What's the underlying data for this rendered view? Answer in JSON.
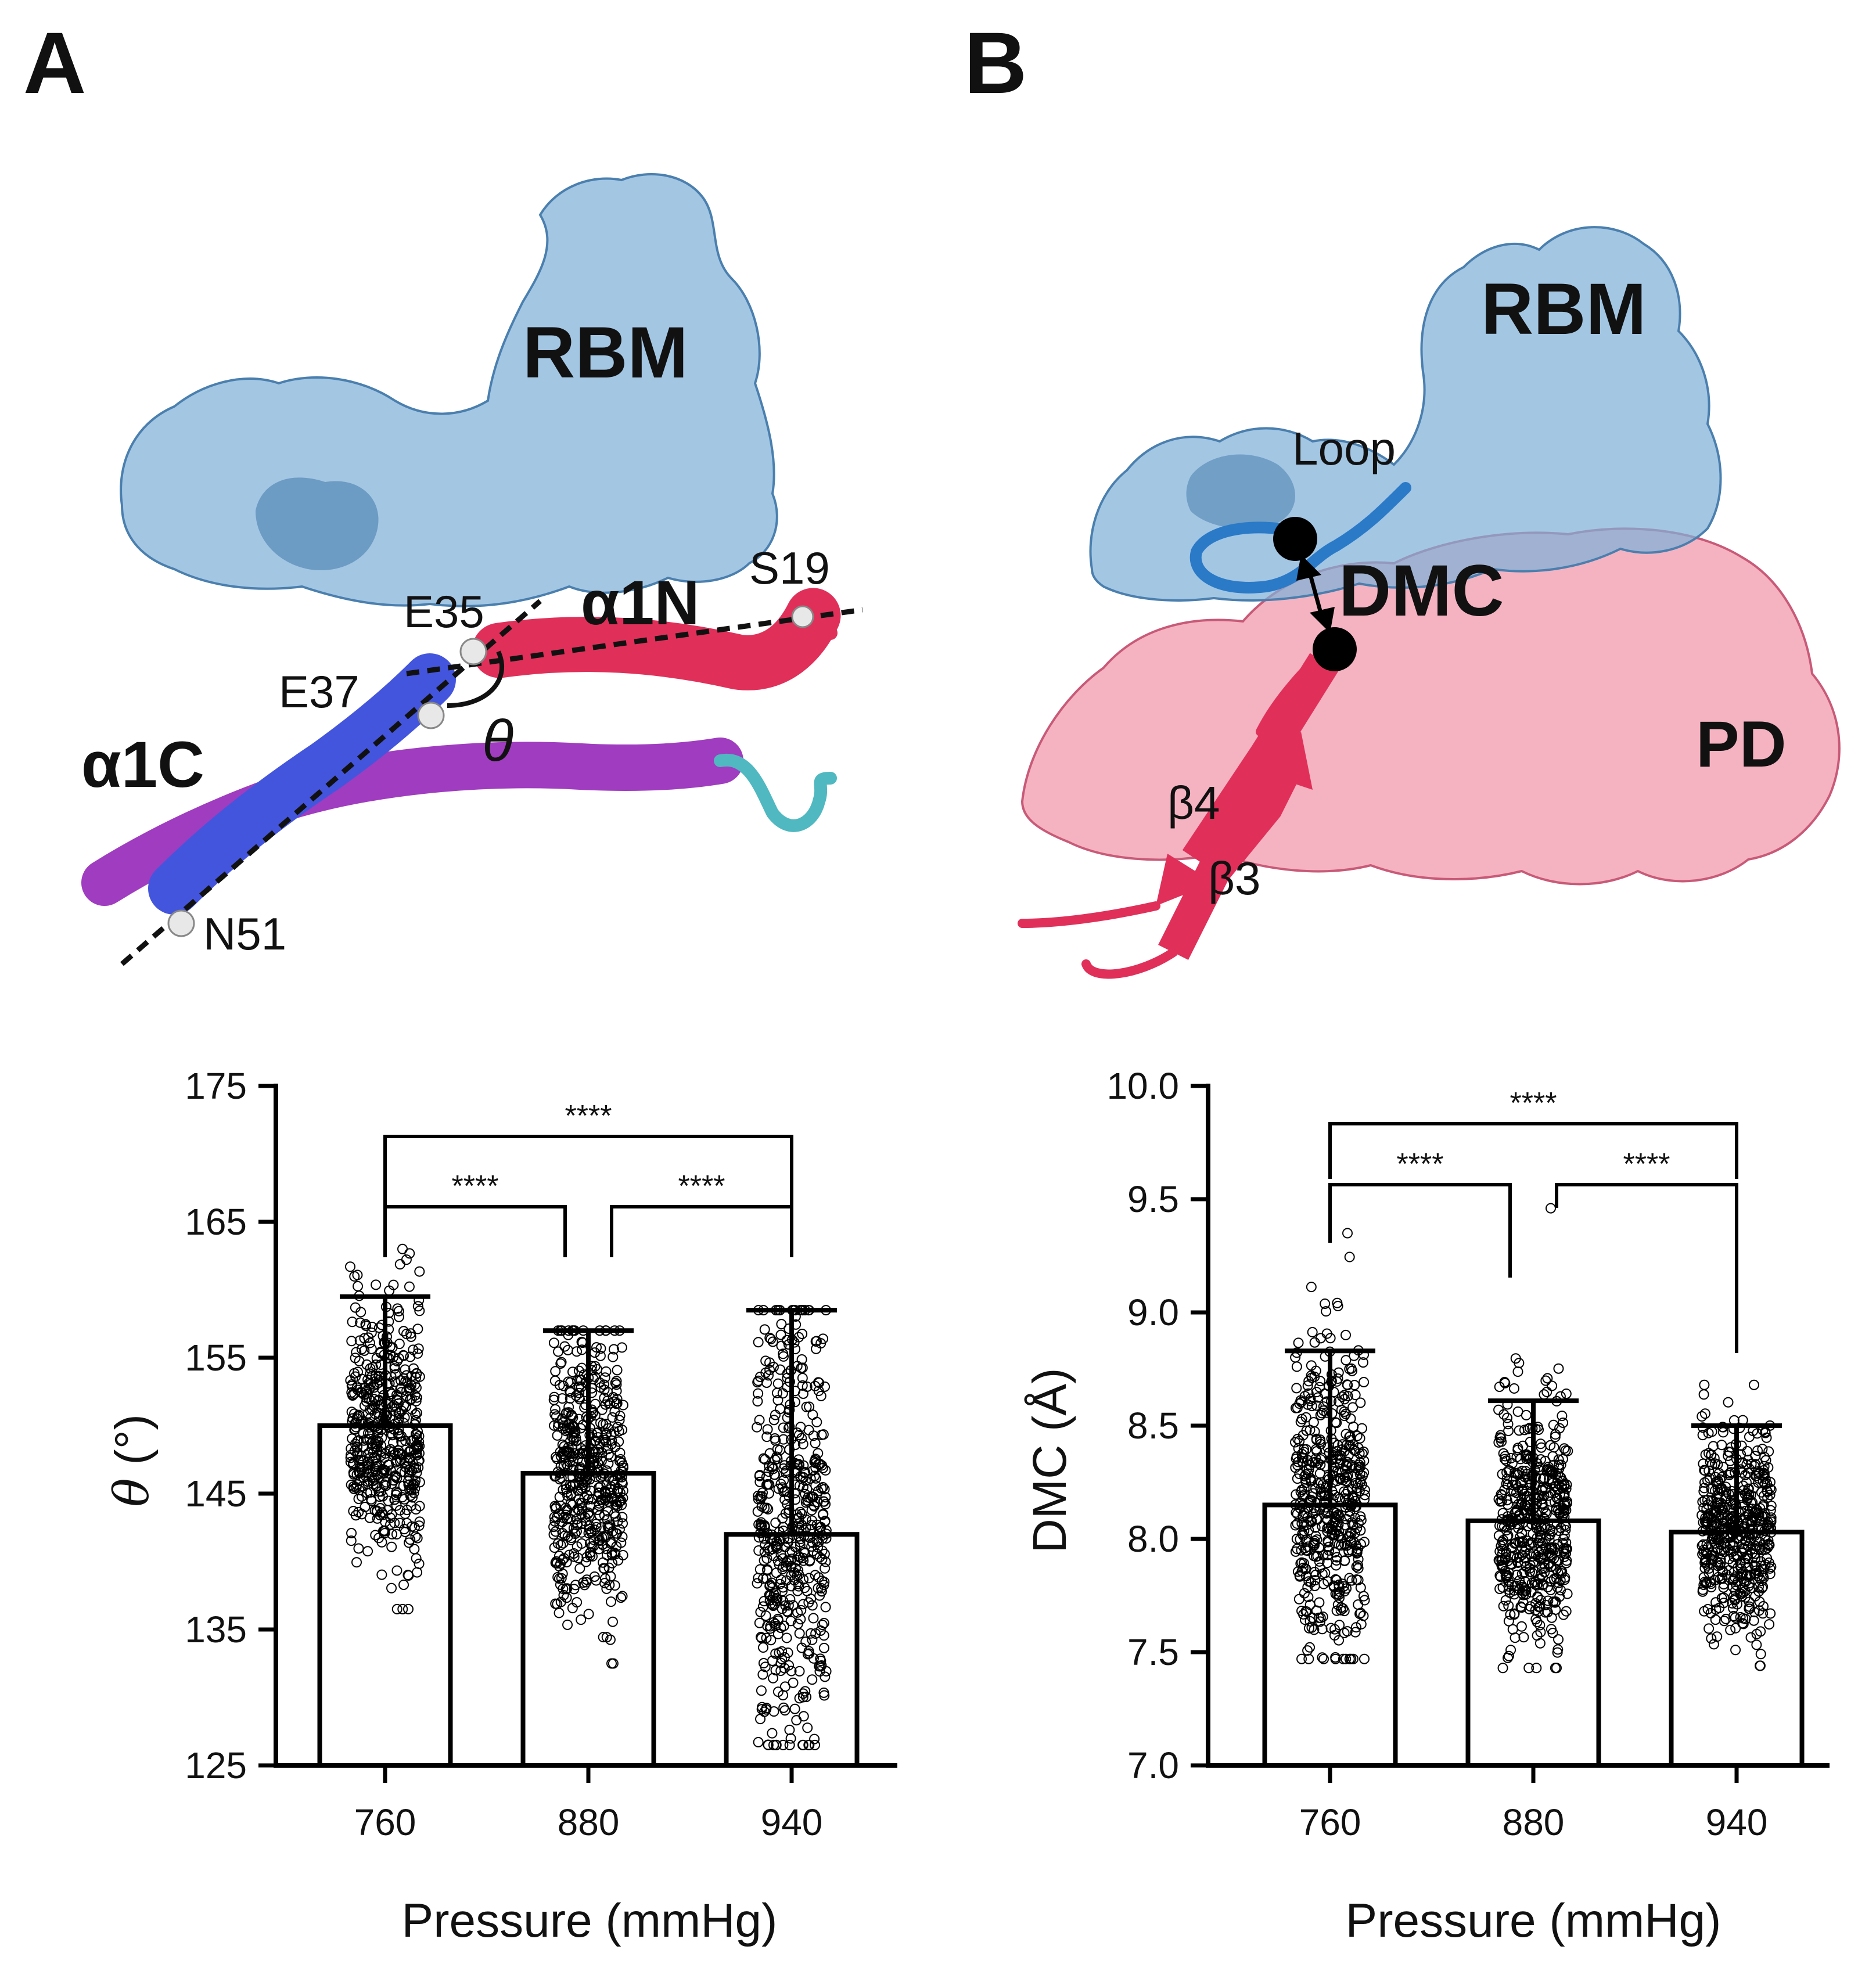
{
  "panels": {
    "A": {
      "letter": "A",
      "structure_labels": {
        "rbm": "RBM",
        "a1n": "α1N",
        "a1c": "α1C",
        "s19": "S19",
        "e35": "E35",
        "e37": "E37",
        "n51": "N51",
        "theta": "θ"
      }
    },
    "B": {
      "letter": "B",
      "structure_labels": {
        "rbm": "RBM",
        "loop": "Loop",
        "dmc": "DMC",
        "pd": "PD",
        "b4": "β4",
        "b3": "β3"
      }
    }
  },
  "colors": {
    "rbm_surface": "#7fb0d8",
    "pd_surface": "#f08aa0",
    "a1n_ribbon": "#e0305a",
    "a1c_ribbon": "#4455dd",
    "purple_ribbon": "#a03cc0",
    "cyan_coil": "#4fb8c0",
    "loop_ribbon": "#2a7ac8",
    "a1n_label": "#e0305a",
    "a1c_label": "#4455dd"
  },
  "chart_data": [
    {
      "type": "bar",
      "title": "",
      "categories": [
        "760",
        "880",
        "940"
      ],
      "values": [
        150,
        146.5,
        142
      ],
      "error_upper": [
        159.5,
        157,
        158.5
      ],
      "scatter_range": [
        [
          136.5,
          163
        ],
        [
          132.5,
          157
        ],
        [
          126.5,
          158.5
        ]
      ],
      "xlabel": "Pressure (mmHg)",
      "ylabel_symbol": "θ",
      "ylabel_unit": "(°)",
      "ylim": [
        125,
        175
      ],
      "yticks": [
        "125",
        "135",
        "145",
        "155",
        "165",
        "175"
      ],
      "significance": [
        {
          "from": "760",
          "to": "880",
          "label": "****"
        },
        {
          "from": "880",
          "to": "940",
          "label": "****"
        },
        {
          "from": "760",
          "to": "940",
          "label": "****"
        }
      ]
    },
    {
      "type": "bar",
      "title": "",
      "categories": [
        "760",
        "880",
        "940"
      ],
      "values": [
        8.15,
        8.08,
        8.03
      ],
      "error_upper": [
        8.83,
        8.61,
        8.5
      ],
      "scatter_range": [
        [
          7.47,
          9.35
        ],
        [
          7.43,
          9.46
        ],
        [
          7.44,
          8.68
        ]
      ],
      "xlabel": "Pressure (mmHg)",
      "ylabel": "DMC (Å)",
      "ylim": [
        7.0,
        10.0
      ],
      "yticks": [
        "7.0",
        "7.5",
        "8.0",
        "8.5",
        "9.0",
        "9.5",
        "10.0"
      ],
      "significance": [
        {
          "from": "760",
          "to": "880",
          "label": "****"
        },
        {
          "from": "880",
          "to": "940",
          "label": "****"
        },
        {
          "from": "760",
          "to": "940",
          "label": "****"
        }
      ]
    }
  ]
}
